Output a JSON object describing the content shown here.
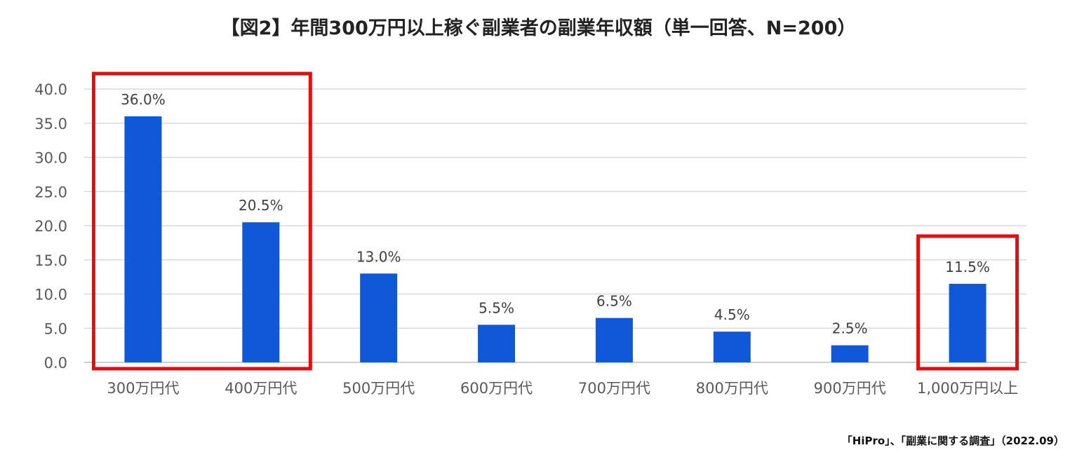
{
  "chart_data": {
    "type": "bar",
    "title": "【図2】年間300万円以上稼ぐ副業者の副業年収額（単一回答、N=200）",
    "categories": [
      "300万円代",
      "400万円代",
      "500万円代",
      "600万円代",
      "700万円代",
      "800万円代",
      "900万円代",
      "1,000万円以上"
    ],
    "values": [
      36.0,
      20.5,
      13.0,
      5.5,
      6.5,
      4.5,
      2.5,
      11.5
    ],
    "value_labels": [
      "36.0%",
      "20.5%",
      "13.0%",
      "5.5%",
      "6.5%",
      "4.5%",
      "2.5%",
      "11.5%"
    ],
    "yticks": [
      "0.0",
      "5.0",
      "10.0",
      "15.0",
      "20.0",
      "25.0",
      "30.0",
      "35.0",
      "40.0"
    ],
    "ylim": [
      0,
      40
    ],
    "xlabel": "",
    "ylabel": "",
    "grid": true,
    "bar_color": "#1158d8",
    "highlight_color": "#e01010",
    "highlight_groups": [
      [
        0,
        1
      ],
      [
        7
      ]
    ]
  },
  "footer": {
    "source": "「HiPro」、「副業に関する調査」（2022.09）"
  }
}
